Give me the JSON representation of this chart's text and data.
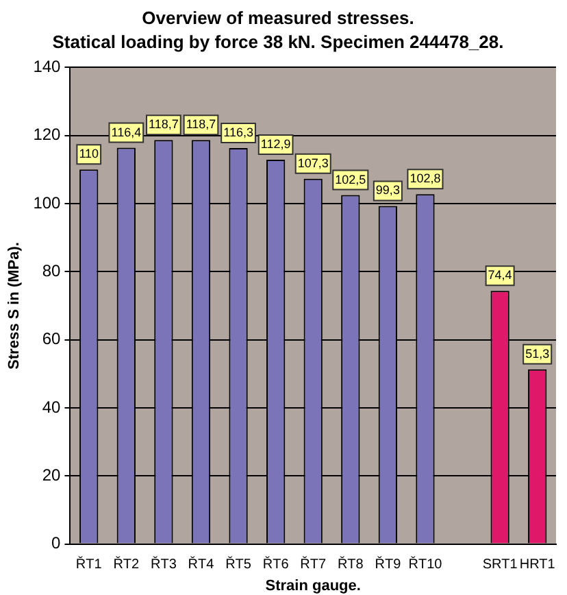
{
  "chart_data": {
    "type": "bar",
    "title": "Overview of measured stresses.",
    "subtitle": "Statical loading by force 38 kN. Specimen 244478_28.",
    "xlabel": "Strain gauge.",
    "ylabel": "Stress S in (MPa).",
    "categories": [
      "ŘT1",
      "ŘT2",
      "ŘT3",
      "ŘT4",
      "ŘT5",
      "ŘT6",
      "ŘT7",
      "ŘT8",
      "ŘT9",
      "ŘT10",
      null,
      "SRT1",
      "HRT1"
    ],
    "values": [
      110,
      116.4,
      118.7,
      118.7,
      116.3,
      112.9,
      107.3,
      102.5,
      99.3,
      102.8,
      null,
      74.4,
      51.3
    ],
    "value_labels": [
      "110",
      "116,4",
      "118,7",
      "118,7",
      "116,3",
      "112,9",
      "107,3",
      "102,5",
      "99,3",
      "102,8",
      null,
      "74,4",
      "51,3"
    ],
    "colors": [
      "#7b74b8",
      "#7b74b8",
      "#7b74b8",
      "#7b74b8",
      "#7b74b8",
      "#7b74b8",
      "#7b74b8",
      "#7b74b8",
      "#7b74b8",
      "#7b74b8",
      "#7b74b8",
      "#e0186a",
      "#e0186a"
    ],
    "ylim": [
      0,
      140
    ],
    "yticks": [
      0,
      20,
      40,
      60,
      80,
      100,
      120,
      140
    ],
    "grid": "y",
    "legend": false
  }
}
